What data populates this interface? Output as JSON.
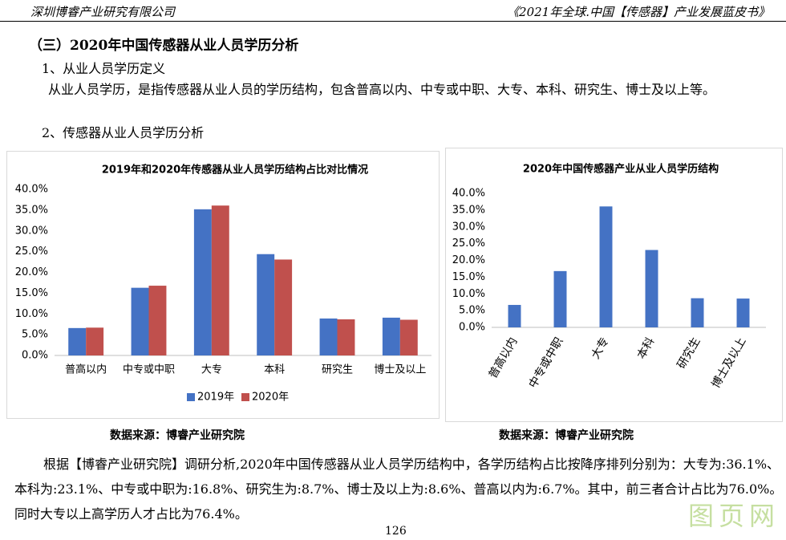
{
  "header": {
    "left": "深圳博睿产业研究有限公司",
    "right": "《2021年全球.中国【传感器】产业发展蓝皮书》"
  },
  "section_title": "（三）2020年中国传感器从业人员学历分析",
  "subsection_1": "1、从业人员学历定义",
  "paragraph_1": "从业人员学历，是指传感器从业人员的学历结构，包含普高以内、中专或中职、大专、本科、研究生、博士及以上等。",
  "subsection_2": "2、传感器从业人员学历分析",
  "chart_data": [
    {
      "type": "bar",
      "title": "2019年和2020年传感器从业人员学历结构占比对比情况",
      "categories": [
        "普高以内",
        "中专或中职",
        "大专",
        "本科",
        "研究生",
        "博士及以上"
      ],
      "series": [
        {
          "name": "2019年",
          "color": "#4472c4",
          "values": [
            6.6,
            16.3,
            35.2,
            24.4,
            8.9,
            9.1
          ]
        },
        {
          "name": "2020年",
          "color": "#c0504d",
          "values": [
            6.7,
            16.8,
            36.1,
            23.1,
            8.7,
            8.6
          ]
        }
      ],
      "ylim": [
        0,
        40
      ],
      "yticks": [
        {
          "value": 0,
          "label": "0.0%"
        },
        {
          "value": 5,
          "label": "5.0%"
        },
        {
          "value": 10,
          "label": "10.0%"
        },
        {
          "value": 15,
          "label": "15.0%"
        },
        {
          "value": 20,
          "label": "20.0%"
        },
        {
          "value": 25,
          "label": "25.0%"
        },
        {
          "value": 30,
          "label": "30.0%"
        },
        {
          "value": 35,
          "label": "35.0%"
        },
        {
          "value": 40,
          "label": "40.0%"
        }
      ],
      "grid": false,
      "legend": "bottom",
      "source": "数据来源：博睿产业研究院"
    },
    {
      "type": "bar",
      "title": "2020年中国传感器产业从业人员学历结构",
      "categories": [
        "普高以内",
        "中专或中职",
        "大专",
        "本科",
        "研究生",
        "博士及以上"
      ],
      "values": [
        6.7,
        16.8,
        36.1,
        23.1,
        8.7,
        8.6
      ],
      "color": "#4472c4",
      "ylim": [
        0,
        40
      ],
      "yticks": [
        {
          "value": 0,
          "label": "0.0%"
        },
        {
          "value": 5,
          "label": "5.0%"
        },
        {
          "value": 10,
          "label": "10.0%"
        },
        {
          "value": 15,
          "label": "15.0%"
        },
        {
          "value": 20,
          "label": "20.0%"
        },
        {
          "value": 25,
          "label": "25.0%"
        },
        {
          "value": 30,
          "label": "30.0%"
        },
        {
          "value": 35,
          "label": "35.0%"
        },
        {
          "value": 40,
          "label": "40.0%"
        }
      ],
      "grid": false,
      "source": "数据来源：博睿产业研究院"
    }
  ],
  "paragraph_2": "根据【博睿产业研究院】调研分析,2020年中国传感器从业人员学历结构中，各学历结构占比按降序排列分别为：大专为:36.1%、本科为:23.1%、中专或中职为:16.8%、研究生为:8.7%、博士及以上为:8.6%、普高以内为:6.7%。其中，前三者合计占比为76.0%。同时大专以上高学历人才占比为76.4%。",
  "page_number": 126,
  "watermark": "图页网"
}
